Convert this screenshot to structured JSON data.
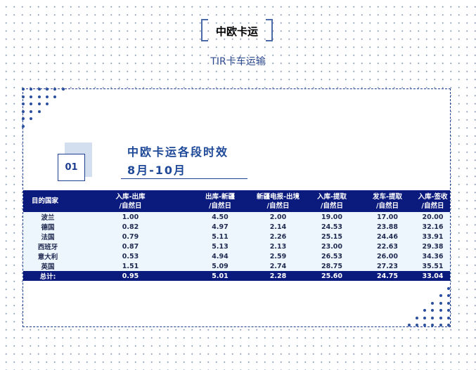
{
  "header": {
    "brand": "中欧卡运",
    "subtitle": "TIR卡车运输"
  },
  "section": {
    "number": "01",
    "title": "中欧卡运各段时效",
    "period": "8月-10月"
  },
  "table": {
    "columns": [
      "目的国家",
      "入库-出库\n/自然日",
      "出库-新疆\n/自然日",
      "新疆电报-出境\n/自然日",
      "入库-提取\n/自然日",
      "发车-提取\n/自然日",
      "入库-签收\n/自然日"
    ],
    "rows": [
      [
        "波兰",
        "1.00",
        "4.50",
        "2.00",
        "19.00",
        "17.00",
        "20.00"
      ],
      [
        "德国",
        "0.82",
        "4.97",
        "2.14",
        "24.53",
        "23.88",
        "32.16"
      ],
      [
        "法国",
        "0.79",
        "5.11",
        "2.26",
        "25.15",
        "24.46",
        "33.91"
      ],
      [
        "西班牙",
        "0.87",
        "5.13",
        "2.13",
        "23.00",
        "22.63",
        "29.38"
      ],
      [
        "意大利",
        "0.53",
        "4.94",
        "2.59",
        "26.53",
        "26.00",
        "34.36"
      ],
      [
        "英国",
        "1.51",
        "5.09",
        "2.74",
        "28.75",
        "27.23",
        "35.51"
      ]
    ],
    "total": [
      "总计:",
      "0.95",
      "5.01",
      "2.28",
      "25.60",
      "24.75",
      "33.04"
    ]
  },
  "colors": {
    "accent": "#0b1a7d",
    "row_bg": "#eef6fd"
  }
}
